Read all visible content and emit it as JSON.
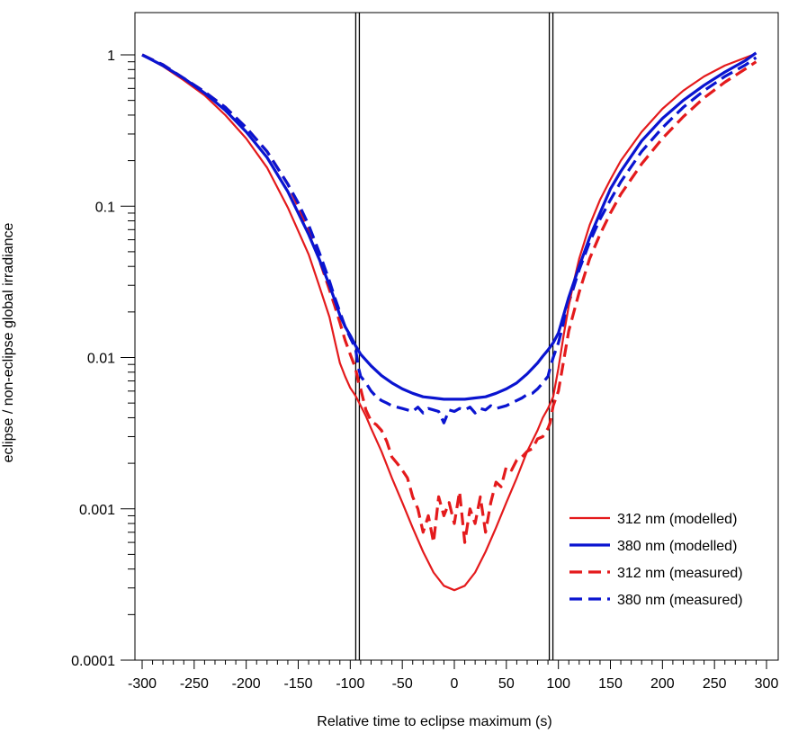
{
  "chart_data": {
    "type": "line",
    "xlabel": "Relative time to eclipse maximum (s)",
    "ylabel": "eclipse / non-eclipse global irradiance",
    "xlim": [
      -310,
      310
    ],
    "ylim": [
      0.0001,
      3
    ],
    "yscale": "log",
    "grid": false,
    "legend_placement": "bottom-right",
    "x_ticks": [
      -300,
      -250,
      -200,
      -150,
      -100,
      -50,
      0,
      50,
      100,
      150,
      200,
      250,
      300
    ],
    "x_tick_labels": [
      "-300",
      "-250",
      "-200",
      "-150",
      "-100",
      "-50",
      "0",
      "50",
      "100",
      "150",
      "200",
      "250",
      "300"
    ],
    "y_ticks": [
      0.0001,
      0.001,
      0.01,
      0.1,
      1
    ],
    "y_tick_labels": [
      "0.0001",
      "0.001",
      "0.01",
      "0.1",
      "1"
    ],
    "vertical_lines": [
      -93,
      93
    ],
    "series": [
      {
        "name": "312 nm (modelled)",
        "color": "#e41a1c",
        "dash": "solid",
        "width": "thin",
        "x": [
          -300,
          -280,
          -260,
          -240,
          -220,
          -200,
          -180,
          -160,
          -140,
          -130,
          -120,
          -115,
          -110,
          -105,
          -100,
          -95,
          -90,
          -85,
          -80,
          -70,
          -60,
          -50,
          -40,
          -30,
          -20,
          -10,
          0,
          10,
          20,
          30,
          40,
          50,
          60,
          70,
          80,
          85,
          90,
          95,
          100,
          105,
          110,
          115,
          120,
          130,
          140,
          150,
          160,
          180,
          200,
          220,
          240,
          260,
          280,
          290
        ],
        "y": [
          1.0,
          0.84,
          0.68,
          0.54,
          0.4,
          0.28,
          0.18,
          0.098,
          0.048,
          0.03,
          0.0185,
          0.013,
          0.0092,
          0.0075,
          0.0063,
          0.0056,
          0.0048,
          0.0041,
          0.0034,
          0.0024,
          0.0016,
          0.0011,
          0.00075,
          0.00052,
          0.00038,
          0.00031,
          0.00029,
          0.00031,
          0.00038,
          0.00052,
          0.00075,
          0.0011,
          0.0016,
          0.0024,
          0.0033,
          0.004,
          0.0046,
          0.0055,
          0.0085,
          0.014,
          0.022,
          0.032,
          0.045,
          0.075,
          0.11,
          0.15,
          0.2,
          0.31,
          0.44,
          0.58,
          0.72,
          0.85,
          0.96,
          1.02
        ]
      },
      {
        "name": "380 nm (modelled)",
        "color": "#0a14d0",
        "dash": "solid",
        "width": "thick",
        "x": [
          -300,
          -280,
          -260,
          -240,
          -220,
          -200,
          -180,
          -160,
          -140,
          -130,
          -120,
          -115,
          -110,
          -105,
          -100,
          -95,
          -90,
          -80,
          -70,
          -60,
          -50,
          -40,
          -30,
          -20,
          -10,
          0,
          10,
          20,
          30,
          40,
          50,
          60,
          70,
          80,
          85,
          90,
          95,
          100,
          110,
          120,
          130,
          140,
          150,
          160,
          180,
          200,
          220,
          240,
          260,
          280,
          290
        ],
        "y": [
          1.0,
          0.85,
          0.7,
          0.56,
          0.43,
          0.31,
          0.21,
          0.125,
          0.065,
          0.045,
          0.03,
          0.024,
          0.019,
          0.016,
          0.014,
          0.012,
          0.0105,
          0.0088,
          0.0076,
          0.0068,
          0.0062,
          0.0058,
          0.0055,
          0.0054,
          0.0053,
          0.0053,
          0.0053,
          0.0054,
          0.0055,
          0.0058,
          0.0062,
          0.0068,
          0.0078,
          0.0092,
          0.0102,
          0.0112,
          0.0125,
          0.0145,
          0.025,
          0.04,
          0.062,
          0.09,
          0.13,
          0.17,
          0.27,
          0.38,
          0.5,
          0.63,
          0.77,
          0.92,
          1.03
        ]
      },
      {
        "name": "312 nm (measured)",
        "color": "#e41a1c",
        "dash": "dashed",
        "width": "thick",
        "x": [
          -300,
          -280,
          -260,
          -240,
          -220,
          -200,
          -180,
          -160,
          -150,
          -140,
          -130,
          -120,
          -115,
          -110,
          -105,
          -100,
          -95,
          -92,
          -90,
          -85,
          -80,
          -75,
          -70,
          -65,
          -60,
          -55,
          -50,
          -45,
          -40,
          -35,
          -30,
          -25,
          -20,
          -15,
          -10,
          -5,
          0,
          5,
          10,
          15,
          20,
          25,
          30,
          35,
          40,
          45,
          50,
          55,
          60,
          65,
          70,
          75,
          80,
          85,
          90,
          92,
          95,
          100,
          105,
          110,
          120,
          130,
          140,
          150,
          160,
          180,
          200,
          220,
          240,
          260,
          280,
          290
        ],
        "y": [
          1.0,
          0.86,
          0.7,
          0.57,
          0.45,
          0.33,
          0.23,
          0.14,
          0.1,
          0.07,
          0.045,
          0.028,
          0.022,
          0.017,
          0.013,
          0.0105,
          0.0085,
          0.0068,
          0.0062,
          0.0045,
          0.0038,
          0.0036,
          0.0033,
          0.0028,
          0.0022,
          0.002,
          0.0018,
          0.0016,
          0.0012,
          0.001,
          0.0007,
          0.0009,
          0.0006,
          0.0012,
          0.0009,
          0.0011,
          0.0008,
          0.0013,
          0.0006,
          0.001,
          0.0008,
          0.0012,
          0.0007,
          0.0011,
          0.0015,
          0.0014,
          0.0019,
          0.0018,
          0.0021,
          0.0022,
          0.0024,
          0.0025,
          0.0029,
          0.003,
          0.0034,
          0.0037,
          0.0048,
          0.006,
          0.0095,
          0.015,
          0.027,
          0.045,
          0.065,
          0.09,
          0.12,
          0.19,
          0.28,
          0.39,
          0.52,
          0.66,
          0.81,
          0.9
        ]
      },
      {
        "name": "380 nm (measured)",
        "color": "#0a14d0",
        "dash": "dashed",
        "width": "thick",
        "x": [
          -300,
          -280,
          -260,
          -240,
          -220,
          -200,
          -180,
          -160,
          -150,
          -140,
          -130,
          -120,
          -115,
          -110,
          -105,
          -100,
          -95,
          -92,
          -90,
          -85,
          -80,
          -75,
          -70,
          -65,
          -60,
          -55,
          -50,
          -45,
          -40,
          -35,
          -30,
          -25,
          -20,
          -15,
          -10,
          -5,
          0,
          5,
          10,
          15,
          20,
          25,
          30,
          35,
          40,
          45,
          50,
          55,
          60,
          65,
          70,
          75,
          80,
          85,
          90,
          92,
          95,
          100,
          105,
          110,
          120,
          130,
          140,
          150,
          160,
          180,
          200,
          220,
          240,
          260,
          280,
          290
        ],
        "y": [
          1.0,
          0.86,
          0.7,
          0.57,
          0.45,
          0.33,
          0.23,
          0.14,
          0.105,
          0.075,
          0.05,
          0.032,
          0.025,
          0.02,
          0.016,
          0.0135,
          0.0115,
          0.0085,
          0.0075,
          0.0068,
          0.006,
          0.0055,
          0.0052,
          0.005,
          0.0048,
          0.0047,
          0.0046,
          0.0045,
          0.0044,
          0.0047,
          0.0043,
          0.0046,
          0.0045,
          0.0044,
          0.0037,
          0.0045,
          0.0044,
          0.0046,
          0.0045,
          0.0047,
          0.0043,
          0.0046,
          0.0045,
          0.0048,
          0.0046,
          0.0047,
          0.0048,
          0.005,
          0.0052,
          0.0054,
          0.0057,
          0.0058,
          0.0062,
          0.0068,
          0.0075,
          0.0085,
          0.01,
          0.0125,
          0.017,
          0.023,
          0.038,
          0.058,
          0.082,
          0.11,
          0.145,
          0.23,
          0.33,
          0.45,
          0.58,
          0.72,
          0.86,
          0.96
        ]
      }
    ]
  }
}
